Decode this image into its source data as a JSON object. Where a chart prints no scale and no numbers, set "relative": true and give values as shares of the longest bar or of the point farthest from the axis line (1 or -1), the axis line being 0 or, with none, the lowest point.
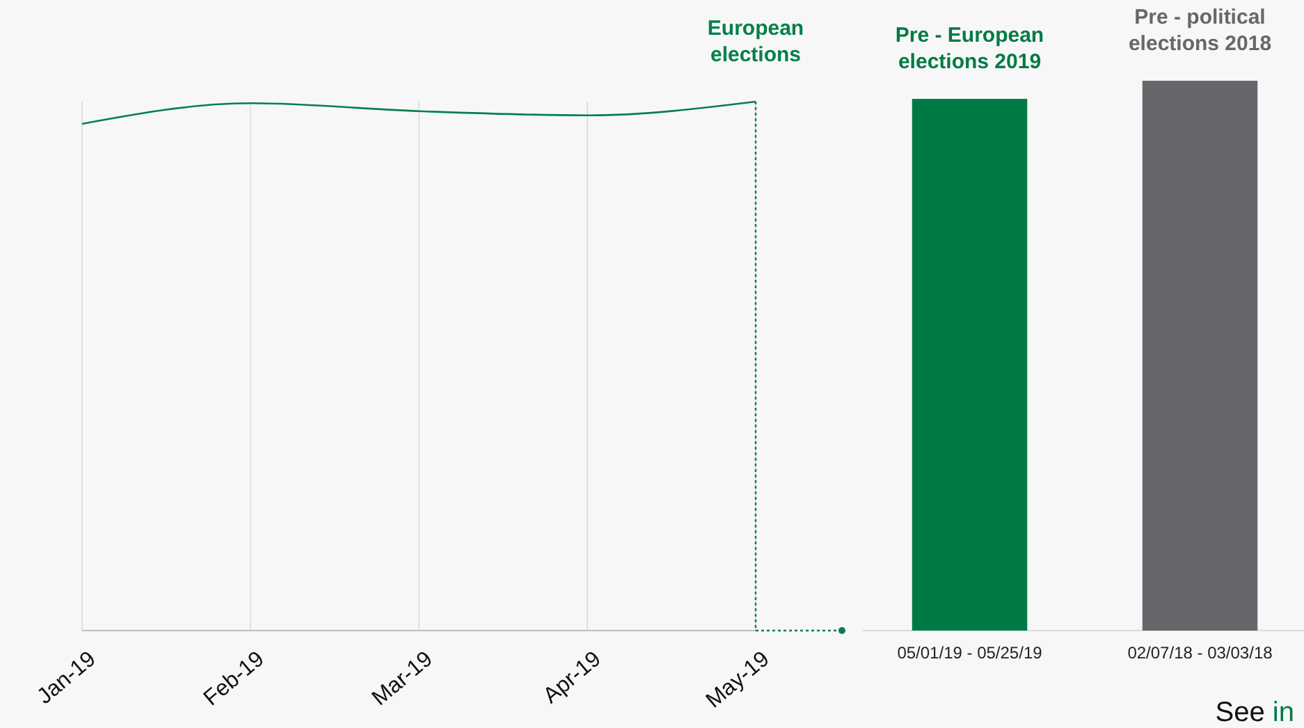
{
  "chart_data": [
    {
      "type": "line",
      "relative": true,
      "categories": [
        "Jan-19",
        "Feb-19",
        "Mar-19",
        "Apr-19",
        "May-19"
      ],
      "tick_labels": "x",
      "grid": "x",
      "series": [
        {
          "color": "#00804a",
          "values": [
            0.958,
            0.997,
            0.982,
            0.974,
            1
          ]
        }
      ],
      "ref_lines": [
        {
          "axis": "x",
          "value": "May-19",
          "label": "European elections",
          "color": "#00804a",
          "line_style": "dotted"
        }
      ]
    },
    {
      "type": "bar",
      "relative": true,
      "categories": [
        "05/01/19 - 05/25/19",
        "02/07/18 - 03/03/18"
      ],
      "tick_labels": "x",
      "values": [
        0.967,
        1
      ],
      "colors": [
        "#007a45",
        "#67666b"
      ],
      "annotations": [
        "Pre - European elections 2019",
        "Pre - political elections 2018",
        "See in"
      ]
    }
  ]
}
